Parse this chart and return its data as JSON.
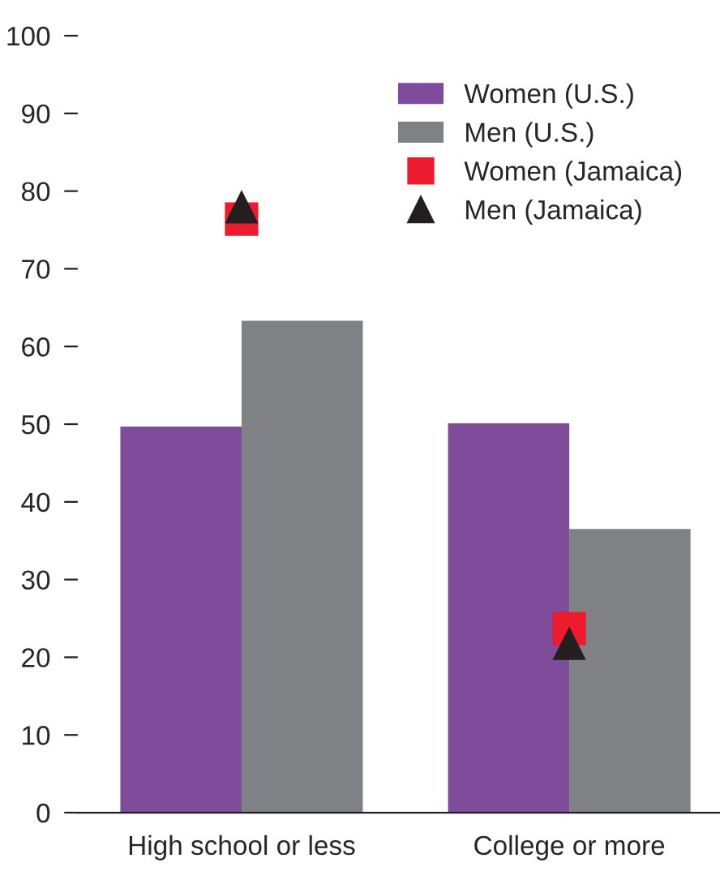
{
  "chart_data": {
    "type": "bar",
    "categories": [
      "High school or less",
      "College or more"
    ],
    "series": [
      {
        "name": "Women (U.S.)",
        "color": "#7f4b9b",
        "values": [
          49.7,
          50.1
        ]
      },
      {
        "name": "Men (U.S.)",
        "color": "#808184",
        "values": [
          63.3,
          36.5
        ]
      },
      {
        "name": "Women (Jamaica)",
        "type": "scatter",
        "marker": "square",
        "color": "#ec1c2e",
        "values": [
          76.4,
          23.7
        ]
      },
      {
        "name": "Men (Jamaica)",
        "type": "scatter",
        "marker": "triangle",
        "color": "#231f20",
        "values": [
          78,
          21.8
        ]
      }
    ],
    "ylim": [
      0,
      100
    ],
    "yticks": [
      0,
      10,
      20,
      30,
      40,
      50,
      60,
      70,
      80,
      90,
      100
    ],
    "grid": false,
    "legend": "top right"
  }
}
